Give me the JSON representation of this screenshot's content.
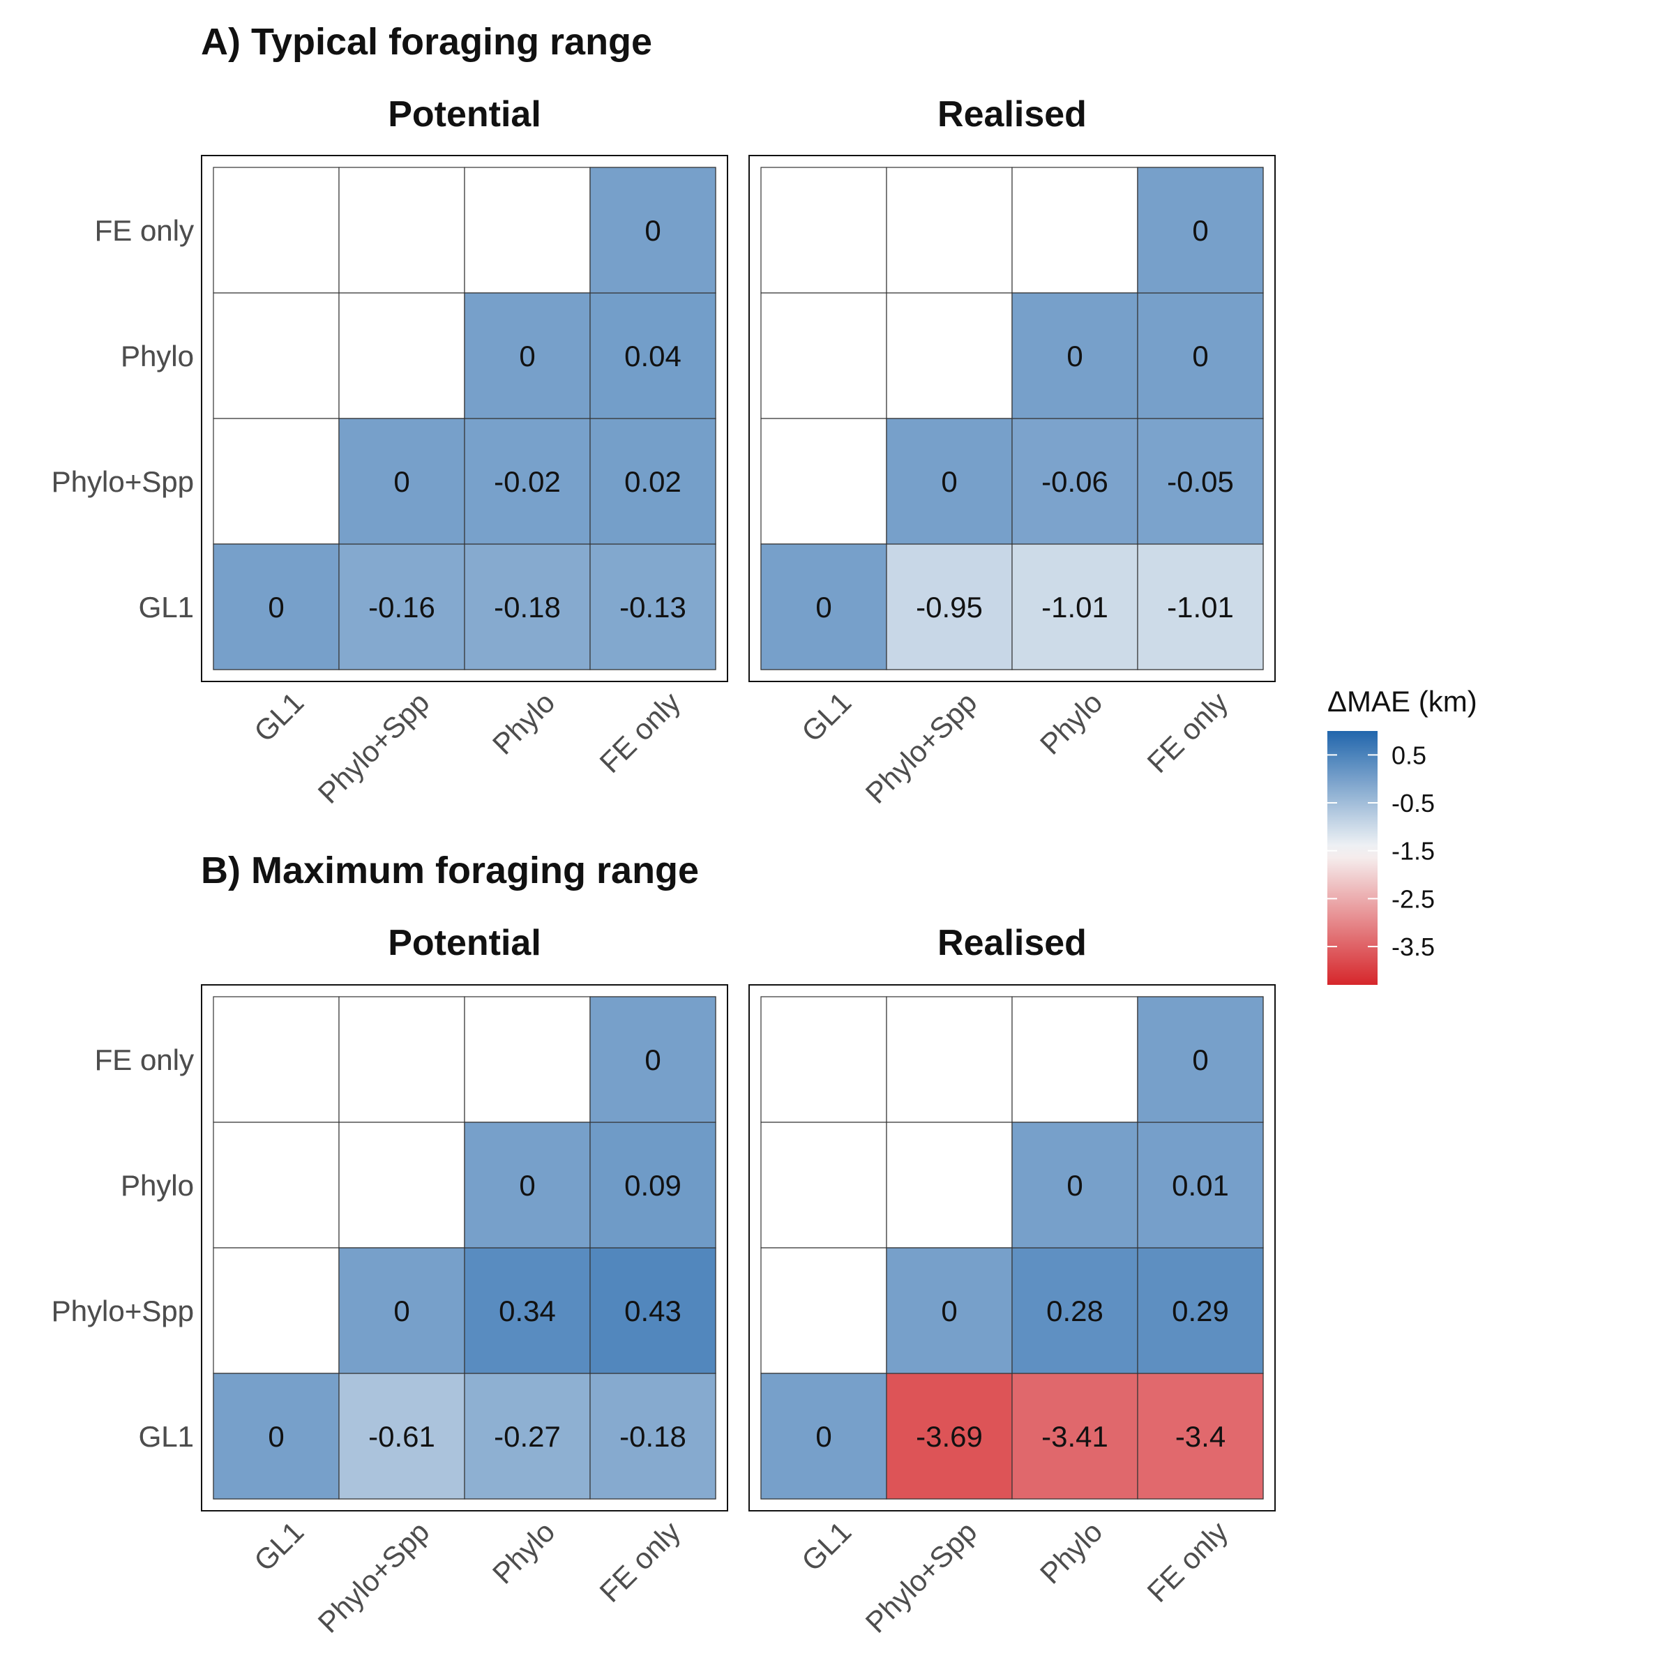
{
  "colors": {
    "high": "#2166ac",
    "mid": "#f7f7f7",
    "low": "#d6262b",
    "cell_border": "#333333",
    "panel_border": "#111111",
    "text": "#111111",
    "axis_text": "#4d4d4d"
  },
  "legend": {
    "title": "ΔMAE (km)",
    "ticks": [
      0.5,
      -0.5,
      -1.5,
      -2.5,
      -3.5
    ],
    "tick_labels": [
      "0.5",
      "-0.5",
      "-1.5",
      "-2.5",
      "-3.5"
    ],
    "limits": [
      -4.3,
      1.0
    ]
  },
  "chart_data": [
    {
      "type": "heatmap",
      "section_title": "A) Typical foraging range",
      "panel_title": "Potential",
      "x_categories": [
        "GL1",
        "Phylo+Spp",
        "Phylo",
        "FE only"
      ],
      "y_categories": [
        "GL1",
        "Phylo+Spp",
        "Phylo",
        "FE only"
      ],
      "cells": [
        {
          "x": "GL1",
          "y": "GL1",
          "value": 0,
          "label": "0"
        },
        {
          "x": "Phylo+Spp",
          "y": "GL1",
          "value": -0.16,
          "label": "-0.16"
        },
        {
          "x": "Phylo",
          "y": "GL1",
          "value": -0.18,
          "label": "-0.18"
        },
        {
          "x": "FE only",
          "y": "GL1",
          "value": -0.13,
          "label": "-0.13"
        },
        {
          "x": "Phylo+Spp",
          "y": "Phylo+Spp",
          "value": 0,
          "label": "0"
        },
        {
          "x": "Phylo",
          "y": "Phylo+Spp",
          "value": -0.02,
          "label": "-0.02"
        },
        {
          "x": "FE only",
          "y": "Phylo+Spp",
          "value": 0.02,
          "label": "0.02"
        },
        {
          "x": "Phylo",
          "y": "Phylo",
          "value": 0,
          "label": "0"
        },
        {
          "x": "FE only",
          "y": "Phylo",
          "value": 0.04,
          "label": "0.04"
        },
        {
          "x": "FE only",
          "y": "FE only",
          "value": 0,
          "label": "0"
        }
      ]
    },
    {
      "type": "heatmap",
      "section_title": "",
      "panel_title": "Realised",
      "x_categories": [
        "GL1",
        "Phylo+Spp",
        "Phylo",
        "FE only"
      ],
      "y_categories": [
        "GL1",
        "Phylo+Spp",
        "Phylo",
        "FE only"
      ],
      "cells": [
        {
          "x": "GL1",
          "y": "GL1",
          "value": 0,
          "label": "0"
        },
        {
          "x": "Phylo+Spp",
          "y": "GL1",
          "value": -0.95,
          "label": "-0.95"
        },
        {
          "x": "Phylo",
          "y": "GL1",
          "value": -1.01,
          "label": "-1.01"
        },
        {
          "x": "FE only",
          "y": "GL1",
          "value": -1.01,
          "label": "-1.01"
        },
        {
          "x": "Phylo+Spp",
          "y": "Phylo+Spp",
          "value": 0,
          "label": "0"
        },
        {
          "x": "Phylo",
          "y": "Phylo+Spp",
          "value": -0.06,
          "label": "-0.06"
        },
        {
          "x": "FE only",
          "y": "Phylo+Spp",
          "value": -0.05,
          "label": "-0.05"
        },
        {
          "x": "Phylo",
          "y": "Phylo",
          "value": 0,
          "label": "0"
        },
        {
          "x": "FE only",
          "y": "Phylo",
          "value": 0,
          "label": "0"
        },
        {
          "x": "FE only",
          "y": "FE only",
          "value": 0,
          "label": "0"
        }
      ]
    },
    {
      "type": "heatmap",
      "section_title": "B) Maximum foraging range",
      "panel_title": "Potential",
      "x_categories": [
        "GL1",
        "Phylo+Spp",
        "Phylo",
        "FE only"
      ],
      "y_categories": [
        "GL1",
        "Phylo+Spp",
        "Phylo",
        "FE only"
      ],
      "cells": [
        {
          "x": "GL1",
          "y": "GL1",
          "value": 0,
          "label": "0"
        },
        {
          "x": "Phylo+Spp",
          "y": "GL1",
          "value": -0.61,
          "label": "-0.61"
        },
        {
          "x": "Phylo",
          "y": "GL1",
          "value": -0.27,
          "label": "-0.27"
        },
        {
          "x": "FE only",
          "y": "GL1",
          "value": -0.18,
          "label": "-0.18"
        },
        {
          "x": "Phylo+Spp",
          "y": "Phylo+Spp",
          "value": 0,
          "label": "0"
        },
        {
          "x": "Phylo",
          "y": "Phylo+Spp",
          "value": 0.34,
          "label": "0.34"
        },
        {
          "x": "FE only",
          "y": "Phylo+Spp",
          "value": 0.43,
          "label": "0.43"
        },
        {
          "x": "Phylo",
          "y": "Phylo",
          "value": 0,
          "label": "0"
        },
        {
          "x": "FE only",
          "y": "Phylo",
          "value": 0.09,
          "label": "0.09"
        },
        {
          "x": "FE only",
          "y": "FE only",
          "value": 0,
          "label": "0"
        }
      ]
    },
    {
      "type": "heatmap",
      "section_title": "",
      "panel_title": "Realised",
      "x_categories": [
        "GL1",
        "Phylo+Spp",
        "Phylo",
        "FE only"
      ],
      "y_categories": [
        "GL1",
        "Phylo+Spp",
        "Phylo",
        "FE only"
      ],
      "cells": [
        {
          "x": "GL1",
          "y": "GL1",
          "value": 0,
          "label": "0"
        },
        {
          "x": "Phylo+Spp",
          "y": "GL1",
          "value": -3.69,
          "label": "-3.69"
        },
        {
          "x": "Phylo",
          "y": "GL1",
          "value": -3.41,
          "label": "-3.41"
        },
        {
          "x": "FE only",
          "y": "GL1",
          "value": -3.4,
          "label": "-3.4"
        },
        {
          "x": "Phylo+Spp",
          "y": "Phylo+Spp",
          "value": 0,
          "label": "0"
        },
        {
          "x": "Phylo",
          "y": "Phylo+Spp",
          "value": 0.28,
          "label": "0.28"
        },
        {
          "x": "FE only",
          "y": "Phylo+Spp",
          "value": 0.29,
          "label": "0.29"
        },
        {
          "x": "Phylo",
          "y": "Phylo",
          "value": 0,
          "label": "0"
        },
        {
          "x": "FE only",
          "y": "Phylo",
          "value": 0.01,
          "label": "0.01"
        },
        {
          "x": "FE only",
          "y": "FE only",
          "value": 0,
          "label": "0"
        }
      ]
    }
  ]
}
